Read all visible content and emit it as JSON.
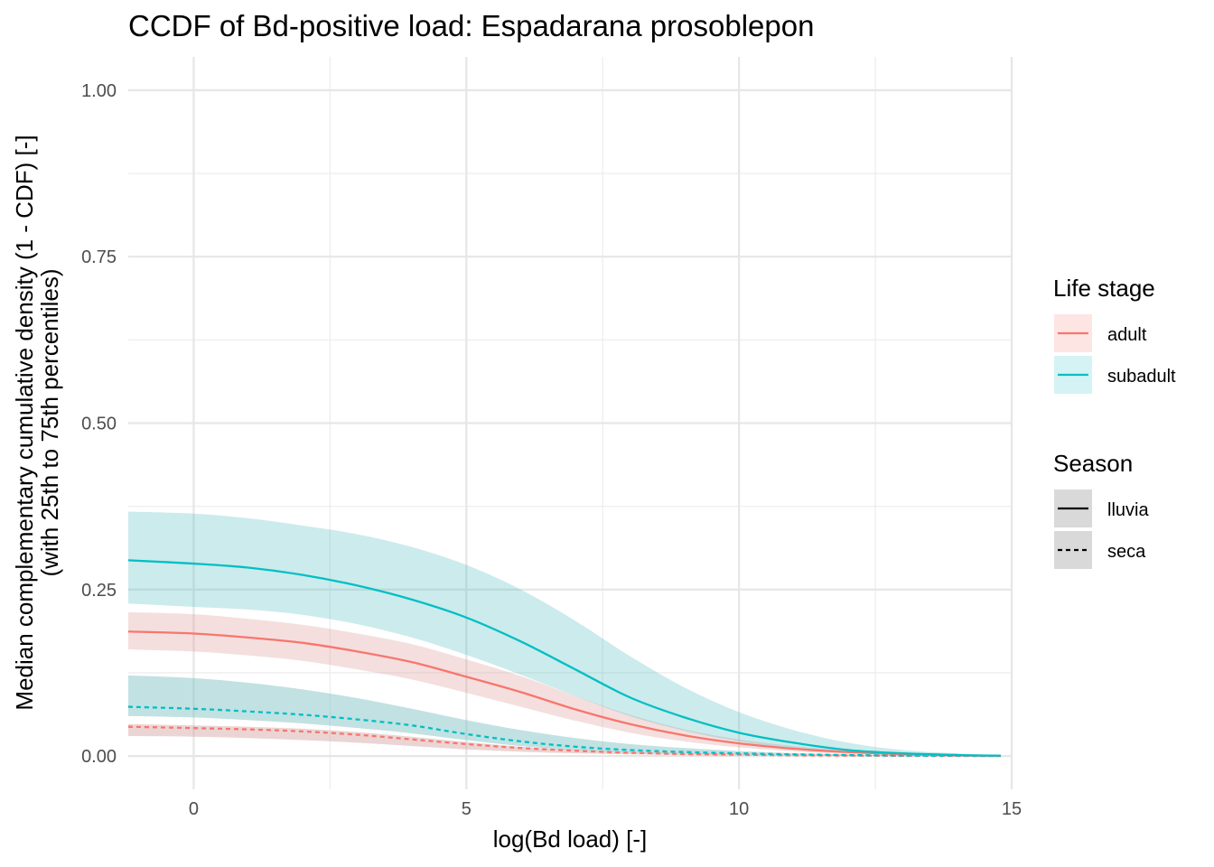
{
  "chart_data": {
    "type": "line",
    "title": "CCDF of Bd-positive load: Espadarana prosoblepon",
    "xlabel": "log(Bd load) [-]",
    "ylabel_line1": "Median complementary cumulative density (1 - CDF) [-]",
    "ylabel_line2": "(with 25th to 75th percentiles)",
    "xlim": [
      -1.2,
      15
    ],
    "ylim": [
      -0.05,
      1.05
    ],
    "x_ticks": [
      0,
      5,
      10,
      15
    ],
    "x_tick_labels": [
      "0",
      "5",
      "10",
      "15"
    ],
    "y_ticks": [
      0,
      0.25,
      0.5,
      0.75,
      1.0
    ],
    "y_tick_labels": [
      "0.00",
      "0.25",
      "0.50",
      "0.75",
      "1.00"
    ],
    "grid": true,
    "legend_position": "right",
    "x": [
      -1.2,
      0,
      1,
      2,
      3,
      4,
      5,
      6,
      7,
      8,
      9,
      10,
      11,
      12,
      13,
      14,
      14.8
    ],
    "series": [
      {
        "name": "subadult / lluvia",
        "life_stage": "subadult",
        "season": "lluvia",
        "color": "#00BFC4",
        "linetype": "solid",
        "median": [
          0.294,
          0.289,
          0.283,
          0.272,
          0.256,
          0.235,
          0.208,
          0.172,
          0.13,
          0.088,
          0.058,
          0.035,
          0.02,
          0.009,
          0.004,
          0.0015,
          0.0005
        ],
        "lower": [
          0.229,
          0.224,
          0.22,
          0.212,
          0.198,
          0.178,
          0.152,
          0.122,
          0.09,
          0.06,
          0.038,
          0.022,
          0.011,
          0.005,
          0.002,
          0.0007,
          0.0002
        ],
        "upper": [
          0.367,
          0.364,
          0.357,
          0.346,
          0.333,
          0.314,
          0.287,
          0.25,
          0.203,
          0.15,
          0.103,
          0.066,
          0.039,
          0.02,
          0.009,
          0.004,
          0.001
        ]
      },
      {
        "name": "adult / lluvia",
        "life_stage": "adult",
        "season": "lluvia",
        "color": "#F8766D",
        "linetype": "solid",
        "median": [
          0.187,
          0.184,
          0.178,
          0.17,
          0.157,
          0.141,
          0.119,
          0.096,
          0.07,
          0.048,
          0.031,
          0.019,
          0.011,
          0.006,
          0.003,
          0.001,
          0.0004
        ],
        "lower": [
          0.16,
          0.157,
          0.151,
          0.143,
          0.13,
          0.115,
          0.095,
          0.074,
          0.053,
          0.035,
          0.022,
          0.013,
          0.007,
          0.0035,
          0.0015,
          0.0006,
          0.0002
        ],
        "upper": [
          0.216,
          0.213,
          0.206,
          0.197,
          0.184,
          0.168,
          0.145,
          0.12,
          0.09,
          0.062,
          0.04,
          0.025,
          0.015,
          0.008,
          0.004,
          0.0015,
          0.0006
        ]
      },
      {
        "name": "subadult / seca",
        "life_stage": "subadult",
        "season": "seca",
        "color": "#00BFC4",
        "linetype": "dashed",
        "median": [
          0.074,
          0.071,
          0.067,
          0.062,
          0.055,
          0.046,
          0.033,
          0.022,
          0.014,
          0.009,
          0.006,
          0.004,
          0.0025,
          0.0015,
          0.0008,
          0.0004,
          0.0002
        ],
        "lower": [
          0.06,
          0.058,
          0.054,
          0.049,
          0.042,
          0.034,
          0.024,
          0.015,
          0.009,
          0.0055,
          0.0035,
          0.002,
          0.0012,
          0.0007,
          0.0004,
          0.0002,
          0.0001
        ],
        "upper": [
          0.121,
          0.117,
          0.11,
          0.1,
          0.087,
          0.071,
          0.054,
          0.039,
          0.027,
          0.018,
          0.012,
          0.0075,
          0.0045,
          0.0025,
          0.0013,
          0.0006,
          0.0003
        ]
      },
      {
        "name": "adult / seca",
        "life_stage": "adult",
        "season": "seca",
        "color": "#F8766D",
        "linetype": "dashed",
        "median": [
          0.044,
          0.042,
          0.04,
          0.037,
          0.032,
          0.025,
          0.018,
          0.012,
          0.008,
          0.005,
          0.003,
          0.002,
          0.0012,
          0.0007,
          0.0004,
          0.0002,
          0.0001
        ],
        "lower": [
          0.03,
          0.029,
          0.027,
          0.024,
          0.02,
          0.015,
          0.01,
          0.0065,
          0.004,
          0.0025,
          0.0015,
          0.0009,
          0.0005,
          0.0003,
          0.00015,
          0.0001,
          5e-05
        ],
        "upper": [
          0.048,
          0.046,
          0.044,
          0.041,
          0.036,
          0.029,
          0.021,
          0.014,
          0.0095,
          0.006,
          0.0038,
          0.0024,
          0.0015,
          0.0009,
          0.0005,
          0.00025,
          0.0001
        ]
      }
    ],
    "band_fill": {
      "subadult": "#00BFC4",
      "adult": "#F8766D",
      "overlap_gray": "#bdbdbd"
    }
  },
  "legend": {
    "life_stage_title": "Life stage",
    "life_stage_items": [
      {
        "label": "adult",
        "color": "#F8766D",
        "fill": "#FDE5E3"
      },
      {
        "label": "subadult",
        "color": "#00BFC4",
        "fill": "#D5F3F4"
      }
    ],
    "season_title": "Season",
    "season_items": [
      {
        "label": "lluvia",
        "linetype": "solid"
      },
      {
        "label": "seca",
        "linetype": "dashed"
      }
    ]
  }
}
